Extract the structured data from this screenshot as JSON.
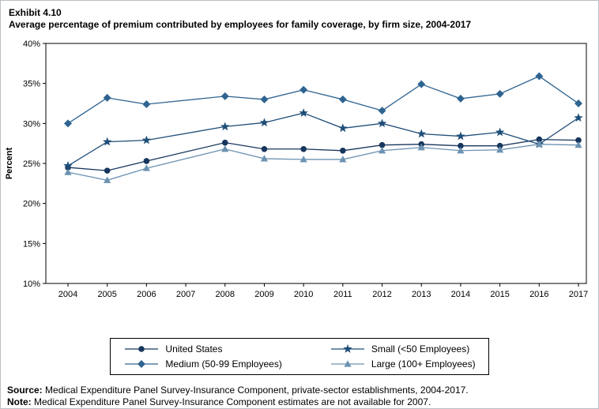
{
  "title": {
    "exhibit": "Exhibit 4.10",
    "text": "Average percentage of premium contributed by employees for family coverage, by firm size, 2004-2017"
  },
  "chart_data": {
    "type": "line",
    "title": "Average percentage of premium contributed by employees for family coverage, by firm size, 2004-2017",
    "xlabel": "",
    "ylabel": "Percent",
    "ylim": [
      10,
      40
    ],
    "yticks": [
      10,
      15,
      20,
      25,
      30,
      35,
      40
    ],
    "ytick_format": "{v}%",
    "grid": false,
    "legend_position": "bottom",
    "x": [
      2004,
      2005,
      2006,
      2007,
      2008,
      2009,
      2010,
      2011,
      2012,
      2013,
      2014,
      2015,
      2016,
      2017
    ],
    "series": [
      {
        "name": "United States",
        "marker": "circle",
        "color": "#17365D",
        "values": [
          24.5,
          24.1,
          25.3,
          null,
          27.6,
          26.8,
          26.8,
          26.6,
          27.3,
          27.4,
          27.2,
          27.2,
          28.0,
          27.9
        ]
      },
      {
        "name": "Medium (50-99 Employees)",
        "marker": "diamond",
        "color": "#2F6491",
        "values": [
          30.0,
          33.2,
          32.4,
          null,
          33.4,
          33.0,
          34.2,
          33.0,
          31.6,
          34.9,
          33.1,
          33.7,
          35.9,
          32.5
        ]
      },
      {
        "name": "Small (<50 Employees)",
        "marker": "star",
        "color": "#1F4E79",
        "values": [
          24.7,
          27.7,
          27.9,
          null,
          29.6,
          30.1,
          31.3,
          29.4,
          30.0,
          28.7,
          28.4,
          28.9,
          27.4,
          30.7
        ]
      },
      {
        "name": "Large (100+ Employees)",
        "marker": "triangle",
        "color": "#6C92B2",
        "values": [
          23.9,
          22.9,
          24.4,
          null,
          26.8,
          25.6,
          25.5,
          25.5,
          26.6,
          27.0,
          26.6,
          26.7,
          27.4,
          27.3
        ]
      }
    ]
  },
  "legend": {
    "grid": [
      [
        0,
        2
      ],
      [
        1,
        3
      ]
    ]
  },
  "footer": {
    "source_label": "Source:",
    "source_text": " Medical Expenditure Panel Survey-Insurance Component, private-sector establishments, 2004-2017.",
    "note_label": "Note:",
    "note_text": " Medical Expenditure Panel Survey-Insurance Component estimates are not available for 2007."
  }
}
